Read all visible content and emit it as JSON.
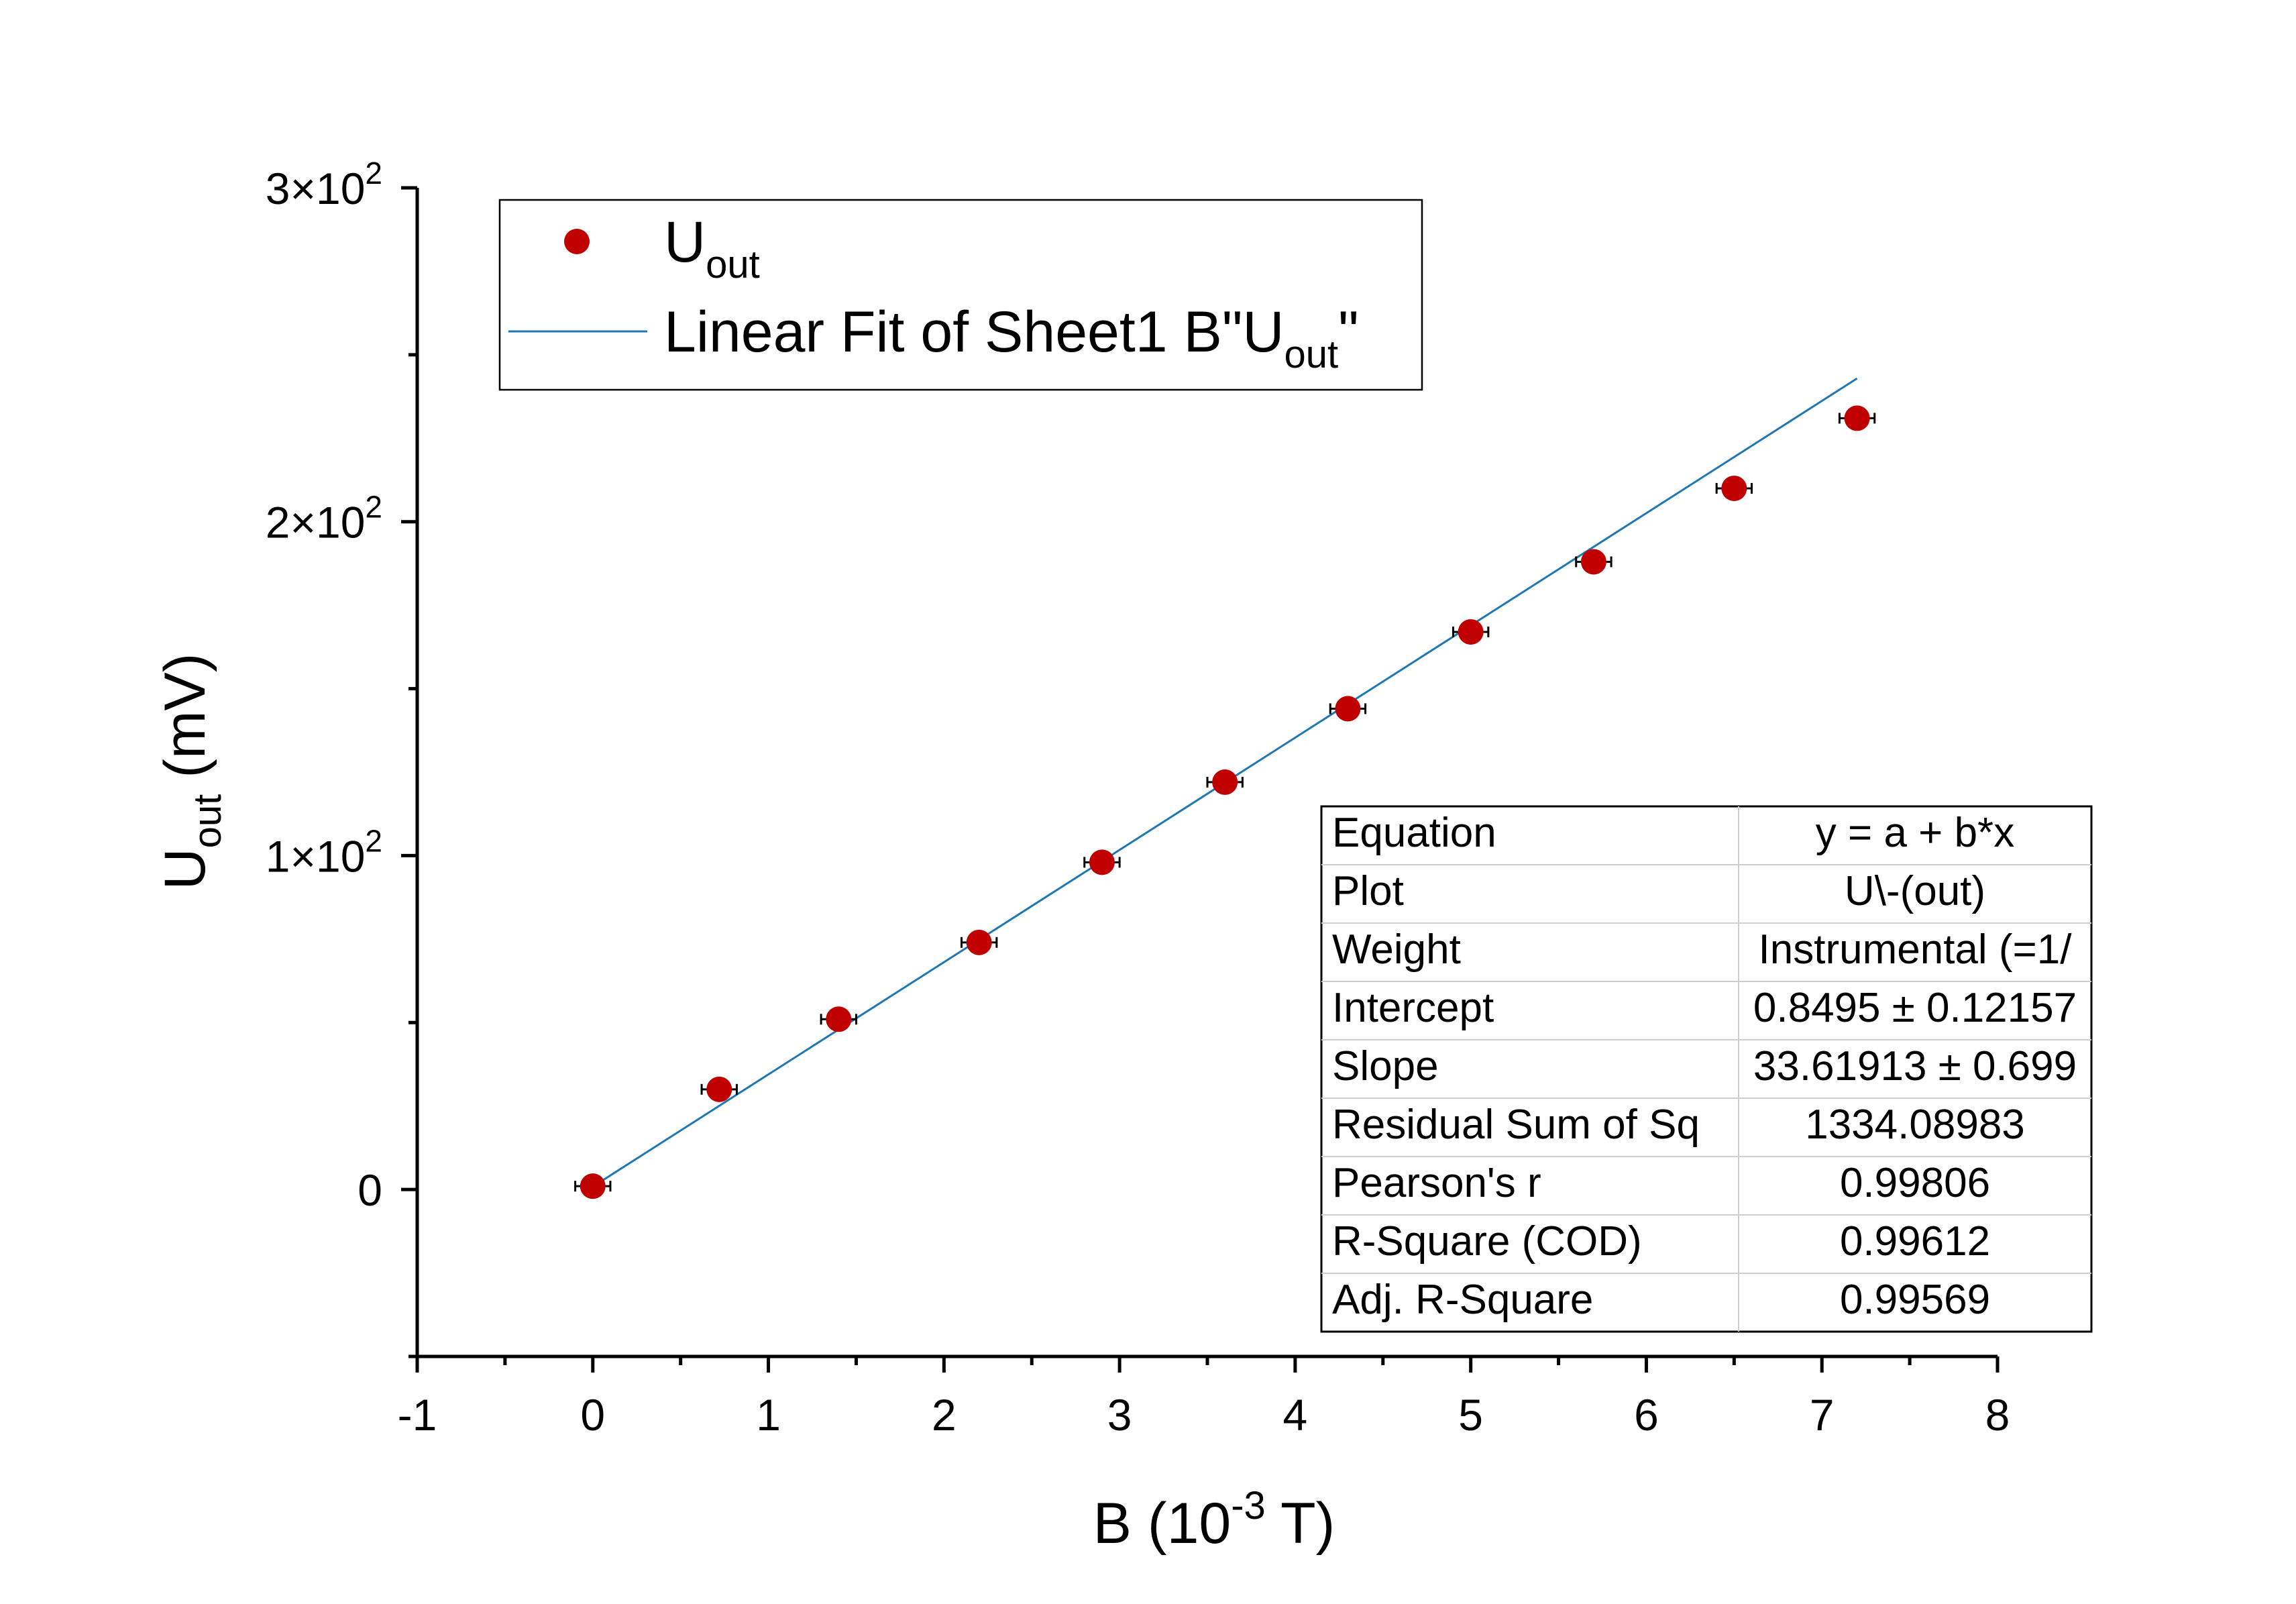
{
  "chart_data": {
    "type": "scatter",
    "xlabel": {
      "main": "B (10",
      "sup": "-3",
      "tail": " T)"
    },
    "ylabel": {
      "main": "U",
      "sub": "out",
      "tail": " (mV)"
    },
    "xlim": [
      -1,
      8
    ],
    "ylim": [
      -50,
      300
    ],
    "x_ticks": [
      -1,
      0,
      1,
      2,
      3,
      4,
      5,
      6,
      7,
      8
    ],
    "x_tick_labels": [
      "-1",
      "0",
      "1",
      "2",
      "3",
      "4",
      "5",
      "6",
      "7",
      "8"
    ],
    "y_ticks": [
      0,
      100,
      200,
      300
    ],
    "y_tick_labels": [
      {
        "base": "0",
        "sup": ""
      },
      {
        "base": "1×10",
        "sup": "2"
      },
      {
        "base": "2×10",
        "sup": "2"
      },
      {
        "base": "3×10",
        "sup": "2"
      }
    ],
    "grid": false,
    "legend_position": "top-left",
    "series": [
      {
        "name": "U",
        "name_sub": "out",
        "kind": "scatter",
        "color": "#c00000",
        "points": [
          {
            "x": 0,
            "y": 1
          },
          {
            "x": 0.72,
            "y": 30
          },
          {
            "x": 1.4,
            "y": 51
          },
          {
            "x": 2.2,
            "y": 74
          },
          {
            "x": 2.9,
            "y": 98
          },
          {
            "x": 3.6,
            "y": 122
          },
          {
            "x": 4.3,
            "y": 144
          },
          {
            "x": 5.0,
            "y": 167
          },
          {
            "x": 5.7,
            "y": 188
          },
          {
            "x": 6.5,
            "y": 210
          },
          {
            "x": 7.2,
            "y": 231
          }
        ],
        "x_error": 0.1
      },
      {
        "name": "Linear Fit of Sheet1 B\"U",
        "name_sub": "out",
        "name_tail": "\"",
        "kind": "line",
        "color": "#1f77b4",
        "intercept": 0.8495,
        "slope": 33.61913,
        "x_range": [
          0,
          7.2
        ]
      }
    ],
    "stats_table": {
      "rows": [
        {
          "label": "Equation",
          "value": "y = a + b*x"
        },
        {
          "label": "Plot",
          "value": "U\\-(out)"
        },
        {
          "label": "Weight",
          "value": "Instrumental (=1/"
        },
        {
          "label": "Intercept",
          "value": "0.8495 ± 0.12157"
        },
        {
          "label": "Slope",
          "value": "33.61913 ± 0.699"
        },
        {
          "label": "Residual Sum of Sq",
          "value": "1334.08983"
        },
        {
          "label": "Pearson's r",
          "value": "0.99806"
        },
        {
          "label": "R-Square (COD)",
          "value": "0.99612"
        },
        {
          "label": "Adj. R-Square",
          "value": "0.99569"
        }
      ]
    }
  }
}
